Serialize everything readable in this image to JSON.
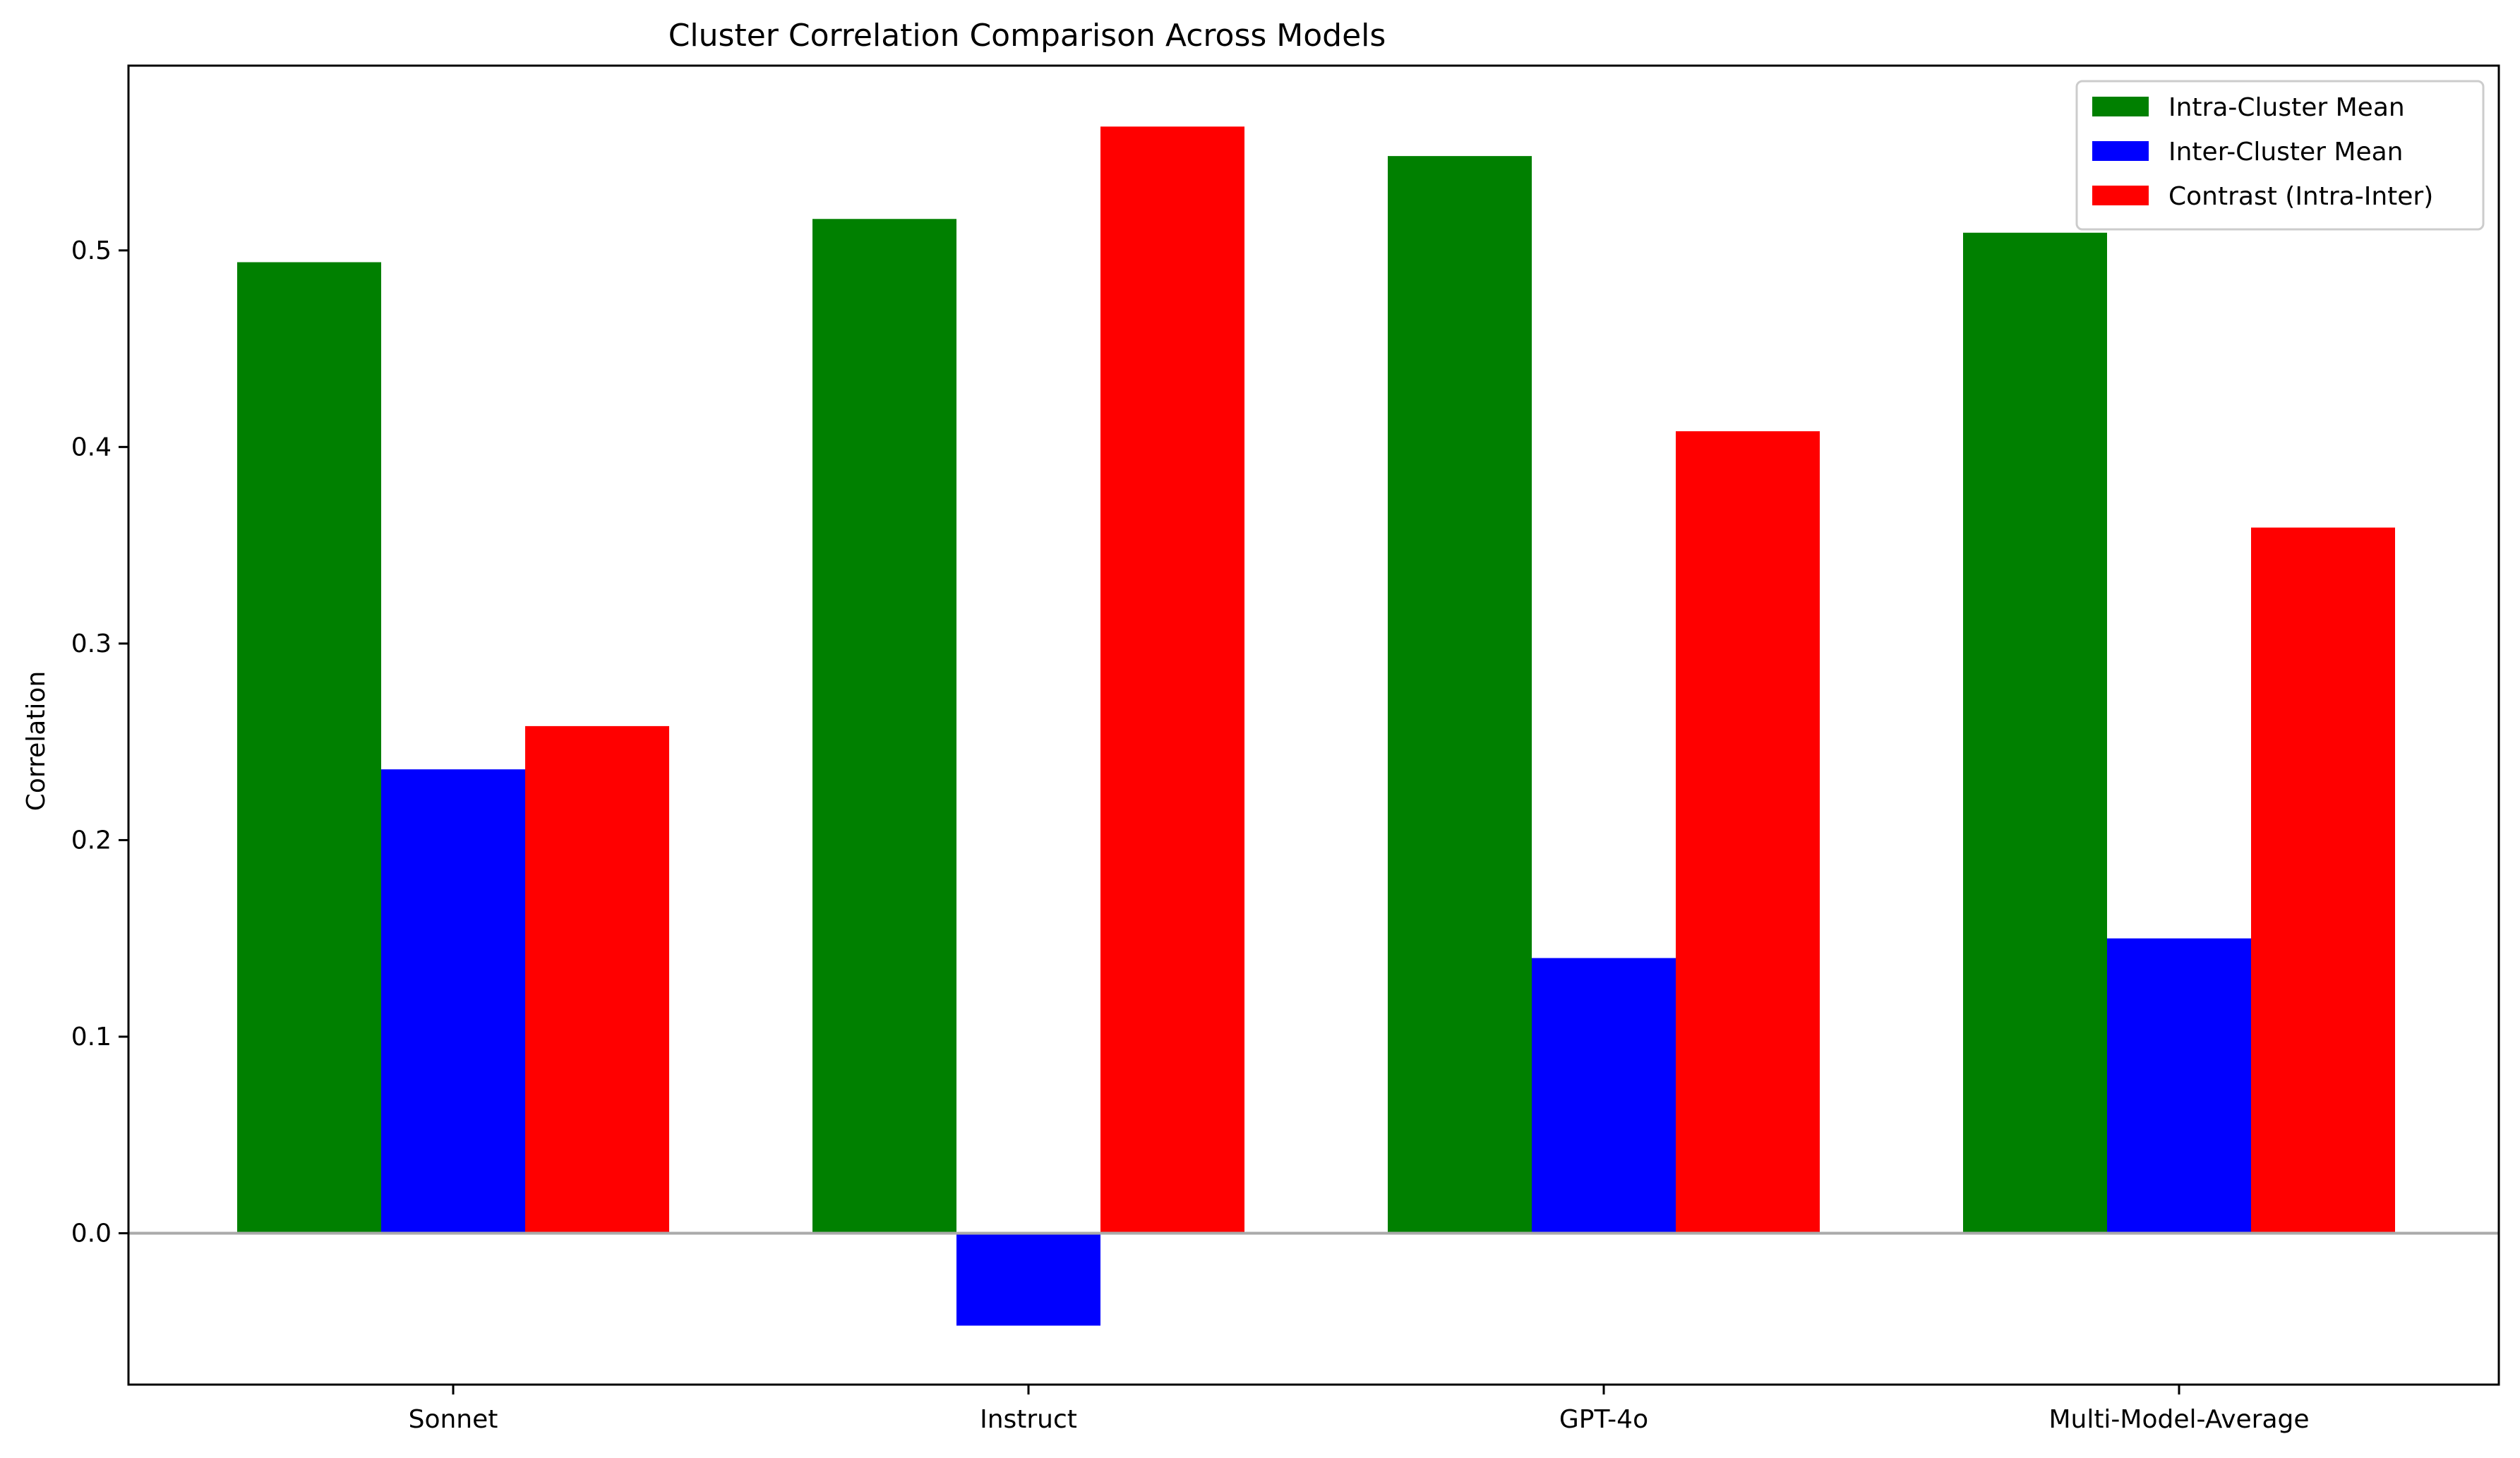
{
  "chart_data": {
    "type": "bar",
    "title": "Cluster Correlation Comparison Across Models",
    "xlabel": "",
    "ylabel": "Correlation",
    "categories": [
      "Sonnet",
      "Instruct",
      "GPT-4o",
      "Multi-Model-Average"
    ],
    "series": [
      {
        "name": "Intra-Cluster Mean",
        "color": "#008000",
        "values": [
          0.494,
          0.516,
          0.548,
          0.509
        ]
      },
      {
        "name": "Inter-Cluster Mean",
        "color": "#0000ff",
        "values": [
          0.236,
          -0.047,
          0.14,
          0.15
        ]
      },
      {
        "name": "Contrast (Intra-Inter)",
        "color": "#ff0000",
        "values": [
          0.258,
          0.563,
          0.408,
          0.359
        ]
      }
    ],
    "ylim": [
      -0.077,
      0.594
    ],
    "yticks": [
      0.0,
      0.1,
      0.2,
      0.3,
      0.4,
      0.5
    ],
    "ytick_labels": [
      "0.0",
      "0.1",
      "0.2",
      "0.3",
      "0.4",
      "0.5"
    ],
    "zero_line_color": "#aaaaaa",
    "grid": false,
    "legend_position": "top-right"
  }
}
